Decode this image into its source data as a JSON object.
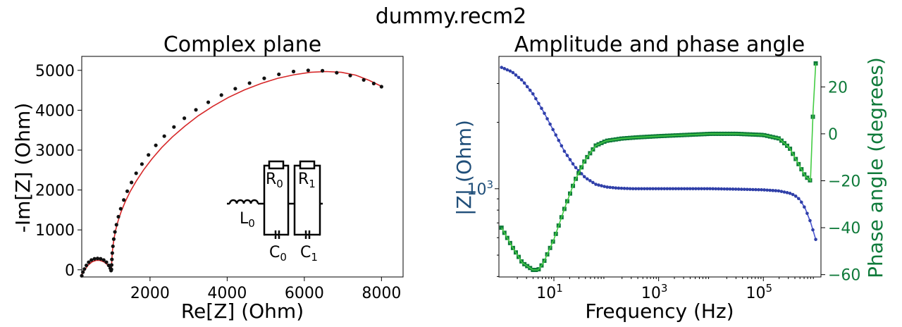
{
  "suptitle": "dummy.recm2",
  "colors": {
    "nyquist_fit": "#d62728",
    "nyquist_points": "#111111",
    "amplitude": "#2f3fa8",
    "amplitude_fit": "#4a55d0",
    "phase": "#0f7a3a",
    "phase_fit": "#44cc44",
    "amplitude_axis": "#1f4e79",
    "phase_axis": "#0f7a3a"
  },
  "circuit": {
    "labels": {
      "L": "L",
      "L_sub": "0",
      "R0": "R",
      "R0_sub": "0",
      "R1": "R",
      "R1_sub": "1",
      "C0": "C",
      "C0_sub": "0",
      "C1": "C",
      "C1_sub": "1"
    }
  },
  "chart_data": [
    {
      "type": "scatter",
      "title": "Complex plane",
      "xlabel": "Re[Z] (Ohm)",
      "ylabel": "-Im[Z] (Ohm)",
      "xlim": [
        230,
        8560
      ],
      "ylim": [
        -180,
        5350
      ],
      "xticks": [
        2000,
        4000,
        6000,
        8000
      ],
      "yticks": [
        0,
        1000,
        2000,
        3000,
        4000,
        5000
      ],
      "xtick_labels": [
        "2000",
        "4000",
        "6000",
        "8000"
      ],
      "ytick_labels": [
        "0",
        "1000",
        "2000",
        "3000",
        "4000",
        "5000"
      ],
      "grid": false,
      "series": [
        {
          "kind": "points",
          "x": [
            230,
            260,
            300,
            350,
            410,
            480,
            560,
            640,
            720,
            800,
            870,
            930,
            970,
            990,
            1000,
            1005,
            1012,
            1022,
            1038,
            1060,
            1090,
            1130,
            1180,
            1240,
            1320,
            1410,
            1520,
            1640,
            1790,
            1960,
            2150,
            2370,
            2620,
            2890,
            3190,
            3510,
            3850,
            4210,
            4580,
            4960,
            5340,
            5720,
            6100,
            6470,
            6840,
            7190,
            7540,
            7800,
            8000
          ],
          "y": [
            -150,
            -60,
            20,
            110,
            190,
            245,
            275,
            285,
            275,
            245,
            190,
            110,
            40,
            -20,
            10,
            120,
            260,
            420,
            590,
            770,
            950,
            1130,
            1330,
            1530,
            1750,
            1970,
            2190,
            2420,
            2650,
            2880,
            3120,
            3350,
            3580,
            3800,
            4010,
            4200,
            4380,
            4540,
            4680,
            4800,
            4900,
            4970,
            5000,
            4990,
            4940,
            4870,
            4760,
            4670,
            4590
          ]
        },
        {
          "kind": "fit",
          "x": [
            230,
            300,
            400,
            500,
            600,
            700,
            800,
            880,
            950,
            990,
            1000,
            1003,
            1008,
            1020,
            1040,
            1070,
            1110,
            1170,
            1250,
            1350,
            1480,
            1640,
            1830,
            2050,
            2300,
            2580,
            2900,
            3250,
            3630,
            4030,
            4450,
            4880,
            5310,
            5740,
            6160,
            6570,
            6960,
            7330,
            7680,
            8000
          ],
          "y": [
            -120,
            -10,
            120,
            200,
            235,
            235,
            200,
            140,
            70,
            20,
            0,
            80,
            220,
            400,
            600,
            800,
            1000,
            1220,
            1450,
            1690,
            1950,
            2220,
            2500,
            2780,
            3060,
            3330,
            3600,
            3860,
            4100,
            4320,
            4510,
            4670,
            4800,
            4890,
            4950,
            4970,
            4950,
            4880,
            4750,
            4600
          ]
        }
      ]
    },
    {
      "type": "line",
      "title": "Amplitude and phase angle",
      "xlabel": "Frequency (Hz)",
      "ylabel": "|Z| (Ohm)",
      "ylabel_right": "Phase angle (degrees)",
      "xscale": "log",
      "yscale": "log",
      "xlim_log10": [
        -0.05,
        6.1
      ],
      "ylim_log10": [
        2.6,
        3.6
      ],
      "y_right_lim": [
        -61,
        33
      ],
      "xticks": [
        "10^1",
        "10^3",
        "10^5"
      ],
      "xtick_values_log10": [
        1,
        3,
        5
      ],
      "ytick_left": "10^3",
      "ytick_left_value_log10": 3,
      "yticks_right": [
        -60,
        -40,
        -20,
        0,
        20
      ],
      "ytick_right_labels": [
        "−60",
        "−40",
        "−20",
        "0",
        "20"
      ],
      "grid": false,
      "series": [
        {
          "name": "|Z|",
          "axis": "left",
          "log10_freq": [
            0.0,
            0.2,
            0.4,
            0.6,
            0.8,
            1.0,
            1.2,
            1.4,
            1.6,
            1.8,
            2.0,
            2.2,
            2.5,
            3.0,
            3.5,
            4.0,
            4.5,
            5.0,
            5.3,
            5.5,
            5.6,
            5.7,
            5.8,
            5.9,
            6.0
          ],
          "log10_z": [
            3.55,
            3.53,
            3.49,
            3.43,
            3.35,
            3.26,
            3.17,
            3.1,
            3.05,
            3.02,
            3.008,
            3.003,
            3.0,
            3.0,
            3.0,
            3.0,
            2.998,
            2.995,
            2.99,
            2.98,
            2.97,
            2.95,
            2.91,
            2.85,
            2.77
          ]
        },
        {
          "name": "Phase",
          "axis": "right",
          "log10_freq": [
            0.0,
            0.2,
            0.4,
            0.6,
            0.7,
            0.8,
            1.0,
            1.2,
            1.4,
            1.6,
            1.8,
            2.0,
            2.3,
            2.6,
            3.0,
            3.5,
            4.0,
            4.5,
            5.0,
            5.3,
            5.5,
            5.6,
            5.7,
            5.8,
            5.9,
            5.95,
            6.0
          ],
          "phase_deg": [
            -40,
            -48,
            -55,
            -58,
            -58,
            -55,
            -45,
            -32,
            -20,
            -11,
            -5,
            -3,
            -2,
            -1.5,
            -1,
            -0.5,
            0,
            0,
            -0.5,
            -2,
            -6,
            -10,
            -14,
            -18,
            -20,
            10,
            30
          ]
        }
      ]
    }
  ]
}
